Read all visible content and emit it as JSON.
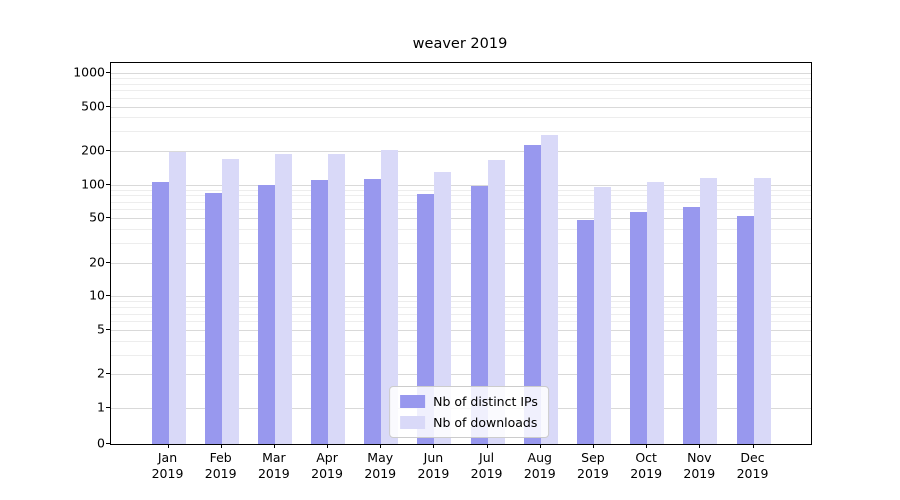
{
  "chart_data": {
    "type": "bar",
    "title": "weaver 2019",
    "categories": [
      "Jan",
      "Feb",
      "Mar",
      "Apr",
      "May",
      "Jun",
      "Jul",
      "Aug",
      "Sep",
      "Oct",
      "Nov",
      "Dec"
    ],
    "year_label": "2019",
    "series": [
      {
        "name": "Nb of distinct IPs",
        "color": "#9898ee",
        "values": [
          105,
          85,
          100,
          110,
          113,
          83,
          97,
          225,
          48,
          57,
          63,
          52
        ]
      },
      {
        "name": "Nb of downloads",
        "color": "#d9d9f8",
        "values": [
          195,
          170,
          188,
          188,
          205,
          130,
          165,
          280,
          95,
          105,
          115,
          115
        ]
      }
    ],
    "yscale": "symlog",
    "yticks": [
      0,
      1,
      2,
      5,
      10,
      20,
      50,
      100,
      200,
      500,
      1000
    ],
    "yminorticks": [
      3,
      4,
      6,
      7,
      8,
      9,
      30,
      40,
      60,
      70,
      80,
      90,
      300,
      400,
      600,
      700,
      800,
      900
    ],
    "ylim": [
      0,
      1230
    ],
    "grid": true,
    "legend_position": "lower center",
    "colors": {
      "major_grid": "#d9d9d9",
      "minor_grid": "#ededed",
      "axis": "#000000",
      "text": "#000000"
    }
  }
}
